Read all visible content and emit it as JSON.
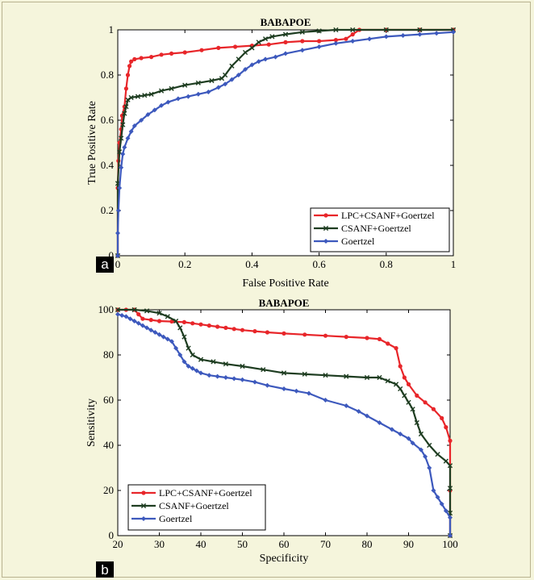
{
  "chart_data": [
    {
      "type": "line",
      "panel_label": "a",
      "title": "BABAPOE",
      "xlabel": "False Positive Rate",
      "ylabel": "True Positive Rate",
      "xlim": [
        0,
        1
      ],
      "ylim": [
        0,
        1
      ],
      "xticks": [
        "0",
        "0.2",
        "0.4",
        "0.6",
        "0.8",
        "1"
      ],
      "yticks": [
        "0",
        "0.2",
        "0.4",
        "0.6",
        "0.8",
        "1"
      ],
      "grid": false,
      "legend_position": "bottom-right",
      "series": [
        {
          "name": "LPC+CSANF+Goertzel",
          "color": "#e8262a",
          "marker": "circle",
          "points": [
            [
              0,
              0
            ],
            [
              0,
              0.3
            ],
            [
              0.002,
              0.42
            ],
            [
              0.005,
              0.5
            ],
            [
              0.01,
              0.56
            ],
            [
              0.013,
              0.62
            ],
            [
              0.02,
              0.66
            ],
            [
              0.025,
              0.74
            ],
            [
              0.03,
              0.8
            ],
            [
              0.035,
              0.84
            ],
            [
              0.04,
              0.86
            ],
            [
              0.05,
              0.87
            ],
            [
              0.07,
              0.875
            ],
            [
              0.1,
              0.88
            ],
            [
              0.13,
              0.89
            ],
            [
              0.16,
              0.895
            ],
            [
              0.2,
              0.9
            ],
            [
              0.25,
              0.91
            ],
            [
              0.3,
              0.92
            ],
            [
              0.35,
              0.925
            ],
            [
              0.4,
              0.93
            ],
            [
              0.45,
              0.935
            ],
            [
              0.5,
              0.945
            ],
            [
              0.55,
              0.95
            ],
            [
              0.6,
              0.95
            ],
            [
              0.65,
              0.955
            ],
            [
              0.68,
              0.96
            ],
            [
              0.7,
              0.98
            ],
            [
              0.72,
              1.0
            ],
            [
              0.8,
              1.0
            ],
            [
              0.9,
              1.0
            ],
            [
              1.0,
              1.0
            ]
          ]
        },
        {
          "name": "CSANF+Goertzel",
          "color": "#1e3d21",
          "marker": "x",
          "points": [
            [
              0,
              0
            ],
            [
              0,
              0.32
            ],
            [
              0.005,
              0.46
            ],
            [
              0.01,
              0.52
            ],
            [
              0.015,
              0.58
            ],
            [
              0.02,
              0.63
            ],
            [
              0.025,
              0.66
            ],
            [
              0.03,
              0.69
            ],
            [
              0.04,
              0.7
            ],
            [
              0.06,
              0.705
            ],
            [
              0.08,
              0.71
            ],
            [
              0.1,
              0.715
            ],
            [
              0.13,
              0.73
            ],
            [
              0.16,
              0.74
            ],
            [
              0.2,
              0.755
            ],
            [
              0.24,
              0.765
            ],
            [
              0.28,
              0.775
            ],
            [
              0.31,
              0.785
            ],
            [
              0.32,
              0.8
            ],
            [
              0.34,
              0.84
            ],
            [
              0.36,
              0.87
            ],
            [
              0.38,
              0.9
            ],
            [
              0.4,
              0.92
            ],
            [
              0.42,
              0.945
            ],
            [
              0.44,
              0.96
            ],
            [
              0.46,
              0.97
            ],
            [
              0.5,
              0.98
            ],
            [
              0.55,
              0.99
            ],
            [
              0.6,
              0.995
            ],
            [
              0.65,
              1.0
            ],
            [
              0.7,
              1.0
            ],
            [
              0.8,
              1.0
            ],
            [
              0.9,
              1.0
            ],
            [
              1.0,
              1.0
            ]
          ]
        },
        {
          "name": "Goertzel",
          "color": "#3d59bd",
          "marker": "diamond",
          "points": [
            [
              0,
              0
            ],
            [
              0,
              0.1
            ],
            [
              0.002,
              0.2
            ],
            [
              0.005,
              0.3
            ],
            [
              0.01,
              0.39
            ],
            [
              0.015,
              0.45
            ],
            [
              0.02,
              0.48
            ],
            [
              0.03,
              0.52
            ],
            [
              0.04,
              0.55
            ],
            [
              0.05,
              0.575
            ],
            [
              0.07,
              0.6
            ],
            [
              0.09,
              0.625
            ],
            [
              0.11,
              0.645
            ],
            [
              0.13,
              0.665
            ],
            [
              0.15,
              0.68
            ],
            [
              0.18,
              0.695
            ],
            [
              0.21,
              0.705
            ],
            [
              0.24,
              0.715
            ],
            [
              0.27,
              0.725
            ],
            [
              0.3,
              0.745
            ],
            [
              0.32,
              0.76
            ],
            [
              0.34,
              0.78
            ],
            [
              0.36,
              0.8
            ],
            [
              0.38,
              0.825
            ],
            [
              0.4,
              0.845
            ],
            [
              0.42,
              0.86
            ],
            [
              0.44,
              0.87
            ],
            [
              0.47,
              0.88
            ],
            [
              0.5,
              0.895
            ],
            [
              0.55,
              0.91
            ],
            [
              0.6,
              0.925
            ],
            [
              0.65,
              0.94
            ],
            [
              0.7,
              0.95
            ],
            [
              0.75,
              0.96
            ],
            [
              0.8,
              0.97
            ],
            [
              0.85,
              0.975
            ],
            [
              0.9,
              0.98
            ],
            [
              0.95,
              0.985
            ],
            [
              1.0,
              0.99
            ]
          ]
        }
      ]
    },
    {
      "type": "line",
      "panel_label": "b",
      "title": "BABAPOE",
      "xlabel": "Specificity",
      "ylabel": "Sensitivity",
      "xlim": [
        20,
        100
      ],
      "ylim": [
        0,
        100
      ],
      "xticks": [
        "20",
        "30",
        "40",
        "50",
        "60",
        "70",
        "80",
        "90",
        "100"
      ],
      "yticks": [
        "0",
        "20",
        "40",
        "60",
        "80",
        "100"
      ],
      "grid": false,
      "legend_position": "bottom-left",
      "series": [
        {
          "name": "LPC+CSANF+Goertzel",
          "color": "#e8262a",
          "marker": "circle",
          "points": [
            [
              20,
              100
            ],
            [
              22,
              100
            ],
            [
              24,
              100
            ],
            [
              25,
              98
            ],
            [
              26,
              96
            ],
            [
              28,
              95.5
            ],
            [
              30,
              95
            ],
            [
              33,
              94.8
            ],
            [
              36,
              94.5
            ],
            [
              38,
              94
            ],
            [
              40,
              93.5
            ],
            [
              42,
              93
            ],
            [
              44,
              92.5
            ],
            [
              46,
              92
            ],
            [
              48,
              91.5
            ],
            [
              50,
              91
            ],
            [
              53,
              90.5
            ],
            [
              56,
              90
            ],
            [
              60,
              89.5
            ],
            [
              65,
              89
            ],
            [
              70,
              88.5
            ],
            [
              75,
              88
            ],
            [
              80,
              87.5
            ],
            [
              83,
              87
            ],
            [
              85,
              85
            ],
            [
              87,
              83
            ],
            [
              88,
              75
            ],
            [
              89,
              70
            ],
            [
              90,
              67
            ],
            [
              92,
              62
            ],
            [
              94,
              59
            ],
            [
              96,
              56
            ],
            [
              98,
              52
            ],
            [
              99,
              48
            ],
            [
              100,
              42
            ],
            [
              100,
              20
            ],
            [
              100,
              0
            ]
          ]
        },
        {
          "name": "CSANF+Goertzel",
          "color": "#1e3d21",
          "marker": "x",
          "points": [
            [
              20,
              100
            ],
            [
              24,
              100
            ],
            [
              27,
              99.5
            ],
            [
              30,
              98.5
            ],
            [
              32,
              97
            ],
            [
              34,
              95
            ],
            [
              35,
              92
            ],
            [
              36,
              88
            ],
            [
              37,
              83
            ],
            [
              38,
              80
            ],
            [
              40,
              78
            ],
            [
              43,
              77
            ],
            [
              46,
              76
            ],
            [
              50,
              75
            ],
            [
              55,
              73.5
            ],
            [
              60,
              72
            ],
            [
              65,
              71.5
            ],
            [
              70,
              71
            ],
            [
              75,
              70.5
            ],
            [
              80,
              70
            ],
            [
              83,
              70
            ],
            [
              85,
              68.5
            ],
            [
              87,
              67
            ],
            [
              88,
              65
            ],
            [
              89,
              62
            ],
            [
              90,
              59
            ],
            [
              91,
              56
            ],
            [
              92,
              50
            ],
            [
              93,
              45
            ],
            [
              95,
              40
            ],
            [
              97,
              36
            ],
            [
              99,
              33
            ],
            [
              100,
              31
            ],
            [
              100,
              21
            ],
            [
              100,
              10
            ],
            [
              100,
              0
            ]
          ]
        },
        {
          "name": "Goertzel",
          "color": "#3d59bd",
          "marker": "diamond",
          "points": [
            [
              20,
              98
            ],
            [
              21,
              97.5
            ],
            [
              22,
              97
            ],
            [
              23,
              96
            ],
            [
              24,
              95
            ],
            [
              25,
              94
            ],
            [
              26,
              93
            ],
            [
              27,
              92
            ],
            [
              28,
              91
            ],
            [
              29,
              90
            ],
            [
              30,
              89
            ],
            [
              31,
              88
            ],
            [
              32,
              87
            ],
            [
              33,
              86
            ],
            [
              34,
              83
            ],
            [
              35,
              80
            ],
            [
              36,
              77
            ],
            [
              37,
              75
            ],
            [
              38,
              74
            ],
            [
              39,
              73
            ],
            [
              40,
              72
            ],
            [
              42,
              71
            ],
            [
              44,
              70.5
            ],
            [
              46,
              70
            ],
            [
              48,
              69.5
            ],
            [
              50,
              69
            ],
            [
              53,
              68
            ],
            [
              56,
              66.5
            ],
            [
              60,
              65
            ],
            [
              63,
              64
            ],
            [
              66,
              63
            ],
            [
              70,
              60
            ],
            [
              75,
              57.5
            ],
            [
              78,
              55
            ],
            [
              80,
              53
            ],
            [
              83,
              50
            ],
            [
              86,
              47
            ],
            [
              88,
              45
            ],
            [
              90,
              43
            ],
            [
              91,
              41
            ],
            [
              93,
              38
            ],
            [
              94,
              35
            ],
            [
              95,
              30
            ],
            [
              96,
              20
            ],
            [
              97,
              17
            ],
            [
              98,
              14
            ],
            [
              99,
              11
            ],
            [
              100,
              8
            ],
            [
              100,
              0
            ]
          ]
        }
      ]
    }
  ]
}
